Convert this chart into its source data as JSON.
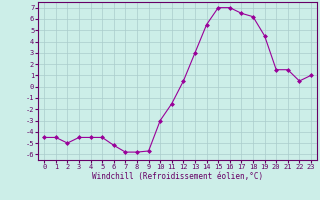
{
  "x": [
    0,
    1,
    2,
    3,
    4,
    5,
    6,
    7,
    8,
    9,
    10,
    11,
    12,
    13,
    14,
    15,
    16,
    17,
    18,
    19,
    20,
    21,
    22,
    23
  ],
  "y": [
    -4.5,
    -4.5,
    -5.0,
    -4.5,
    -4.5,
    -4.5,
    -5.2,
    -5.8,
    -5.8,
    -5.7,
    -3.0,
    -1.5,
    0.5,
    3.0,
    5.5,
    7.0,
    7.0,
    6.5,
    6.2,
    4.5,
    1.5,
    1.5,
    0.5,
    1.0
  ],
  "line_color": "#990099",
  "marker": "D",
  "marker_size": 2,
  "bg_color": "#cceee8",
  "grid_color": "#aacccc",
  "xlabel": "Windchill (Refroidissement éolien,°C)",
  "ylim": [
    -6.5,
    7.5
  ],
  "xlim": [
    -0.5,
    23.5
  ],
  "xticks": [
    0,
    1,
    2,
    3,
    4,
    5,
    6,
    7,
    8,
    9,
    10,
    11,
    12,
    13,
    14,
    15,
    16,
    17,
    18,
    19,
    20,
    21,
    22,
    23
  ],
  "yticks": [
    -6,
    -5,
    -4,
    -3,
    -2,
    -1,
    0,
    1,
    2,
    3,
    4,
    5,
    6,
    7
  ],
  "axis_color": "#660066",
  "spine_color": "#660066",
  "tick_fontsize": 5,
  "xlabel_fontsize": 5.5
}
